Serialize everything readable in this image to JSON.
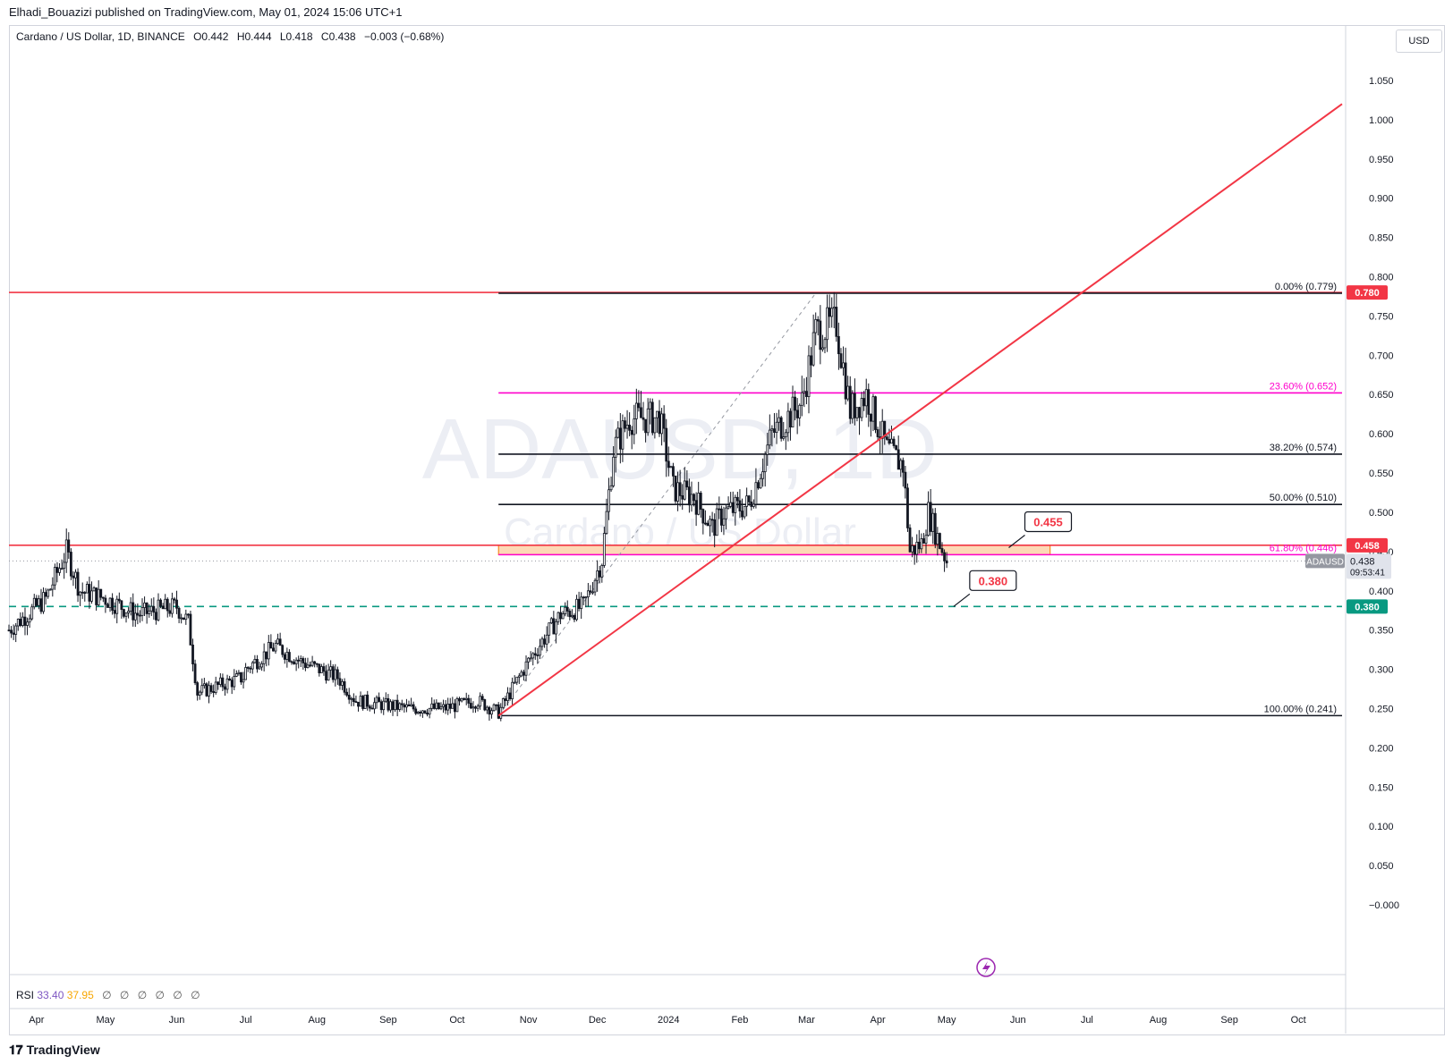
{
  "header": {
    "publisher_line": "Elhadi_Bouazizi published on TradingView.com, May 01, 2024 15:06 UTC+1"
  },
  "legend": {
    "symbol": "Cardano / US Dollar, 1D, BINANCE",
    "open": "O0.442",
    "high": "H0.444",
    "low": "L0.418",
    "close": "C0.438",
    "change": "−0.003 (−0.68%)"
  },
  "currency_button": "USD",
  "watermark": {
    "symbol": "ADAUSD, 1D",
    "name": "Cardano / US Dollar"
  },
  "rsi_legend": {
    "label": "RSI",
    "value1": "33.40",
    "value2": "37.95",
    "na": [
      "∅",
      "∅",
      "∅",
      "∅",
      "∅",
      "∅"
    ]
  },
  "footer": {
    "brand": "TradingView"
  },
  "colors": {
    "red": "#f23645",
    "black": "#131722",
    "magenta": "#ff00cc",
    "green": "#089981",
    "zone_fill": "#fcc896",
    "zone_border": "#f57c00",
    "grid_text": "#131722"
  },
  "chart_data": {
    "type": "candlestick",
    "symbol": "ADAUSD",
    "interval": "1D",
    "ylim": [
      -0.05,
      1.08
    ],
    "y_ticks": [
      "1.050",
      "1.000",
      "0.950",
      "0.900",
      "0.850",
      "0.800",
      "0.750",
      "0.700",
      "0.650",
      "0.600",
      "0.550",
      "0.500",
      "0.450",
      "0.400",
      "0.350",
      "0.300",
      "0.250",
      "0.200",
      "0.150",
      "0.100",
      "0.050",
      "−0.000"
    ],
    "x_tick_labels": [
      "Apr",
      "May",
      "Jun",
      "Jul",
      "Aug",
      "Sep",
      "Oct",
      "Nov",
      "Dec",
      "2024",
      "Feb",
      "Mar",
      "Apr",
      "May",
      "Jun",
      "Jul",
      "Aug",
      "Sep",
      "Oct"
    ],
    "x_tick_dates": [
      "2023-04-01",
      "2023-05-01",
      "2023-06-01",
      "2023-07-01",
      "2023-08-01",
      "2023-09-01",
      "2023-10-01",
      "2023-11-01",
      "2023-12-01",
      "2024-01-01",
      "2024-02-01",
      "2024-03-01",
      "2024-04-01",
      "2024-05-01",
      "2024-06-01",
      "2024-07-01",
      "2024-08-01",
      "2024-09-01",
      "2024-10-01"
    ],
    "x_range": [
      "2023-03-20",
      "2024-10-20"
    ],
    "price_path": [
      [
        "2023-03-20",
        0.35
      ],
      [
        "2023-04-05",
        0.39
      ],
      [
        "2023-04-14",
        0.45
      ],
      [
        "2023-04-20",
        0.4
      ],
      [
        "2023-05-01",
        0.39
      ],
      [
        "2023-05-15",
        0.37
      ],
      [
        "2023-06-01",
        0.38
      ],
      [
        "2023-06-06",
        0.36
      ],
      [
        "2023-06-10",
        0.27
      ],
      [
        "2023-06-20",
        0.28
      ],
      [
        "2023-06-30",
        0.29
      ],
      [
        "2023-07-01",
        0.3
      ],
      [
        "2023-07-14",
        0.33
      ],
      [
        "2023-07-25",
        0.31
      ],
      [
        "2023-08-10",
        0.29
      ],
      [
        "2023-08-18",
        0.26
      ],
      [
        "2023-09-10",
        0.25
      ],
      [
        "2023-09-25",
        0.25
      ],
      [
        "2023-10-10",
        0.26
      ],
      [
        "2023-10-19",
        0.245
      ],
      [
        "2023-11-01",
        0.31
      ],
      [
        "2023-11-15",
        0.37
      ],
      [
        "2023-11-25",
        0.38
      ],
      [
        "2023-12-03",
        0.44
      ],
      [
        "2023-12-08",
        0.58
      ],
      [
        "2023-12-15",
        0.62
      ],
      [
        "2023-12-28",
        0.62
      ],
      [
        "2024-01-03",
        0.53
      ],
      [
        "2024-01-12",
        0.52
      ],
      [
        "2024-01-20",
        0.48
      ],
      [
        "2024-01-25",
        0.5
      ],
      [
        "2024-02-05",
        0.51
      ],
      [
        "2024-02-15",
        0.6
      ],
      [
        "2024-02-28",
        0.64
      ],
      [
        "2024-03-05",
        0.73
      ],
      [
        "2024-03-14",
        0.74
      ],
      [
        "2024-03-20",
        0.63
      ],
      [
        "2024-03-27",
        0.65
      ],
      [
        "2024-04-05",
        0.58
      ],
      [
        "2024-04-12",
        0.56
      ],
      [
        "2024-04-15",
        0.45
      ],
      [
        "2024-04-20",
        0.46
      ],
      [
        "2024-04-23",
        0.5
      ],
      [
        "2024-04-28",
        0.46
      ],
      [
        "2024-05-01",
        0.438
      ]
    ],
    "fibonacci": [
      {
        "level": "0.00%",
        "price": 0.779,
        "label": "0.00% (0.779)",
        "color": "black"
      },
      {
        "level": "23.60%",
        "price": 0.652,
        "label": "23.60% (0.652)",
        "color": "magenta"
      },
      {
        "level": "38.20%",
        "price": 0.574,
        "label": "38.20% (0.574)",
        "color": "black"
      },
      {
        "level": "50.00%",
        "price": 0.51,
        "label": "50.00% (0.510)",
        "color": "black"
      },
      {
        "level": "61.80%",
        "price": 0.446,
        "label": "61.80% (0.446)",
        "color": "magenta"
      },
      {
        "level": "100.00%",
        "price": 0.241,
        "label": "100.00% (0.241)",
        "color": "black"
      }
    ],
    "fib_start_date": "2023-10-19",
    "horizontal_lines": [
      {
        "price": 0.78,
        "label": "0.780",
        "color": "red"
      },
      {
        "price": 0.458,
        "label": "0.458",
        "color": "red"
      },
      {
        "price": 0.38,
        "label": "0.380",
        "color": "green",
        "style": "dashed"
      }
    ],
    "trendline": {
      "from": [
        "2023-10-19",
        0.241
      ],
      "to": [
        "2024-10-20",
        1.02
      ]
    },
    "zone": {
      "from": "2023-10-19",
      "to": "2024-06-15",
      "top": 0.458,
      "bottom": 0.446
    },
    "callouts": [
      {
        "text": "0.455",
        "date": "2024-05-28",
        "price": 0.455
      },
      {
        "text": "0.380",
        "date": "2024-05-04",
        "price": 0.38
      }
    ],
    "last_price": {
      "symbol": "ADAUSD",
      "price": "0.438",
      "countdown": "09:53:41"
    }
  }
}
